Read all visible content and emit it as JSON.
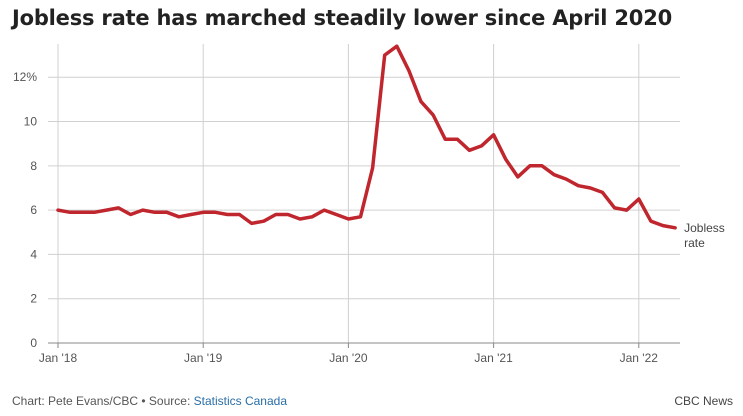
{
  "title": "Jobless rate has marched steadily lower since April 2020",
  "footer": {
    "credit": "Chart: Pete Evans/CBC",
    "separator": " • Source: ",
    "source_link": "Statistics Canada",
    "brand": "CBC News"
  },
  "colors": {
    "line": "#c0262d",
    "grid": "#d0d0d0",
    "axis": "#888888",
    "text": "#555555"
  },
  "chart_data": {
    "type": "line",
    "title": "Jobless rate has marched steadily lower since April 2020",
    "xlabel": "",
    "ylabel": "",
    "ylim": [
      0,
      13.5
    ],
    "yticks": [
      0,
      2,
      4,
      6,
      8,
      10,
      12
    ],
    "ytick_labels": [
      "0",
      "2",
      "4",
      "6",
      "8",
      "10",
      "12%"
    ],
    "xticks": [
      "2018-01",
      "2019-01",
      "2020-01",
      "2021-01",
      "2022-01"
    ],
    "xtick_labels": [
      "Jan '18",
      "Jan '19",
      "Jan '20",
      "Jan '21",
      "Jan '22"
    ],
    "grid": true,
    "series": [
      {
        "name": "Jobless rate",
        "color": "#c0262d",
        "x": [
          "2018-01",
          "2018-02",
          "2018-03",
          "2018-04",
          "2018-05",
          "2018-06",
          "2018-07",
          "2018-08",
          "2018-09",
          "2018-10",
          "2018-11",
          "2018-12",
          "2019-01",
          "2019-02",
          "2019-03",
          "2019-04",
          "2019-05",
          "2019-06",
          "2019-07",
          "2019-08",
          "2019-09",
          "2019-10",
          "2019-11",
          "2019-12",
          "2020-01",
          "2020-02",
          "2020-03",
          "2020-04",
          "2020-05",
          "2020-06",
          "2020-07",
          "2020-08",
          "2020-09",
          "2020-10",
          "2020-11",
          "2020-12",
          "2021-01",
          "2021-02",
          "2021-03",
          "2021-04",
          "2021-05",
          "2021-06",
          "2021-07",
          "2021-08",
          "2021-09",
          "2021-10",
          "2021-11",
          "2021-12",
          "2022-01",
          "2022-02",
          "2022-03",
          "2022-04"
        ],
        "y": [
          6.0,
          5.9,
          5.9,
          5.9,
          6.0,
          6.1,
          5.8,
          6.0,
          5.9,
          5.9,
          5.7,
          5.8,
          5.9,
          5.9,
          5.8,
          5.8,
          5.4,
          5.5,
          5.8,
          5.8,
          5.6,
          5.7,
          6.0,
          5.8,
          5.6,
          5.7,
          7.9,
          13.0,
          13.4,
          12.3,
          10.9,
          10.3,
          9.2,
          9.2,
          8.7,
          8.9,
          9.4,
          8.3,
          7.5,
          8.0,
          8.0,
          7.6,
          7.4,
          7.1,
          7.0,
          6.8,
          6.1,
          6.0,
          6.5,
          5.5,
          5.3,
          5.2
        ]
      }
    ]
  }
}
